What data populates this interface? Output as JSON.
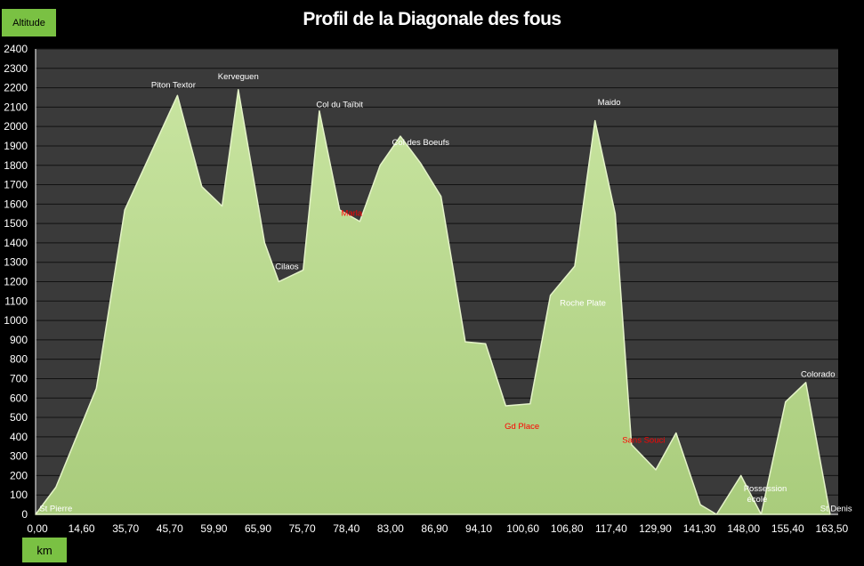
{
  "chart_data": {
    "type": "area",
    "title": "Profil de la Diagonale des fous",
    "ylabel": "Altitude",
    "xlabel": "km",
    "ylim": [
      0,
      2400
    ],
    "yticks": [
      0,
      100,
      200,
      300,
      400,
      500,
      600,
      700,
      800,
      900,
      1000,
      1100,
      1200,
      1300,
      1400,
      1500,
      1600,
      1700,
      1800,
      1900,
      2000,
      2100,
      2200,
      2300,
      2400
    ],
    "categories": [
      "0,00",
      "14,60",
      "35,70",
      "45,70",
      "59,90",
      "65,90",
      "75,70",
      "78,40",
      "83,00",
      "86,90",
      "94,10",
      "100,60",
      "106,80",
      "117,40",
      "129,90",
      "141,30",
      "148,00",
      "155,40",
      "163,50"
    ],
    "grid": true,
    "series": [
      {
        "name": "Altitude",
        "color": "#b5d78a",
        "values": [
          {
            "x": 0.0,
            "y": 0
          },
          {
            "x": 0.5,
            "y": 140
          },
          {
            "x": 1.5,
            "y": 650
          },
          {
            "x": 2.2,
            "y": 1570
          },
          {
            "x": 3.5,
            "y": 2160
          },
          {
            "x": 4.1,
            "y": 1690
          },
          {
            "x": 4.6,
            "y": 1590
          },
          {
            "x": 5.0,
            "y": 2190
          },
          {
            "x": 5.65,
            "y": 1400
          },
          {
            "x": 6.0,
            "y": 1200
          },
          {
            "x": 6.6,
            "y": 1260
          },
          {
            "x": 7.0,
            "y": 2080
          },
          {
            "x": 7.5,
            "y": 1570
          },
          {
            "x": 8.0,
            "y": 1510
          },
          {
            "x": 8.5,
            "y": 1800
          },
          {
            "x": 9.0,
            "y": 1950
          },
          {
            "x": 9.5,
            "y": 1810
          },
          {
            "x": 10.0,
            "y": 1640
          },
          {
            "x": 10.6,
            "y": 890
          },
          {
            "x": 11.1,
            "y": 880
          },
          {
            "x": 11.6,
            "y": 560
          },
          {
            "x": 12.2,
            "y": 570
          },
          {
            "x": 12.7,
            "y": 1130
          },
          {
            "x": 13.3,
            "y": 1280
          },
          {
            "x": 13.8,
            "y": 2030
          },
          {
            "x": 14.3,
            "y": 1550
          },
          {
            "x": 14.7,
            "y": 360
          },
          {
            "x": 15.3,
            "y": 230
          },
          {
            "x": 15.8,
            "y": 420
          },
          {
            "x": 16.4,
            "y": 50
          },
          {
            "x": 16.8,
            "y": 0
          },
          {
            "x": 17.4,
            "y": 200
          },
          {
            "x": 17.9,
            "y": 0
          },
          {
            "x": 18.5,
            "y": 580
          },
          {
            "x": 19.0,
            "y": 680
          },
          {
            "x": 19.6,
            "y": 0
          }
        ]
      }
    ],
    "annotations": [
      {
        "text": "St Pierre",
        "x": 0.5,
        "y": 15,
        "color": "#ffffff"
      },
      {
        "text": "Piton Textor",
        "x": 3.4,
        "y": 2200,
        "color": "#ffffff"
      },
      {
        "text": "Kerveguen",
        "x": 5.0,
        "y": 2245,
        "color": "#ffffff"
      },
      {
        "text": "Cilaos",
        "x": 6.2,
        "y": 1265,
        "color": "#ffffff"
      },
      {
        "text": "Col du Taïbit",
        "x": 7.5,
        "y": 2100,
        "color": "#ffffff"
      },
      {
        "text": "Marla",
        "x": 7.8,
        "y": 1540,
        "color": "#ff0000"
      },
      {
        "text": "Col des Boeufs",
        "x": 9.5,
        "y": 1905,
        "color": "#ffffff"
      },
      {
        "text": "Gd Place",
        "x": 12.0,
        "y": 440,
        "color": "#ff0000"
      },
      {
        "text": "Roche Plate",
        "x": 13.5,
        "y": 1075,
        "color": "#ffffff"
      },
      {
        "text": "Maido",
        "x": 14.15,
        "y": 2110,
        "color": "#ffffff"
      },
      {
        "text": "Sans Souci",
        "x": 15.0,
        "y": 370,
        "color": "#ff0000"
      },
      {
        "text": "Possession",
        "x": 18.0,
        "y": 120,
        "color": "#ffffff"
      },
      {
        "text": "école",
        "x": 17.8,
        "y": 65,
        "color": "#ffffff"
      },
      {
        "text": "Colorado",
        "x": 19.3,
        "y": 710,
        "color": "#ffffff"
      },
      {
        "text": "St Denis",
        "x": 19.75,
        "y": 15,
        "color": "#ffffff"
      }
    ]
  }
}
